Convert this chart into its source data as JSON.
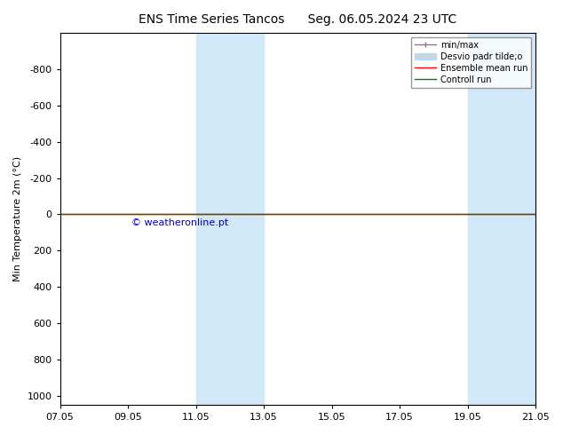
{
  "title": "ENS Time Series Tancos      Seg. 06.05.2024 23 UTC",
  "ylabel": "Min Temperature 2m (°C)",
  "ylim": [
    -1000,
    1050
  ],
  "yticks": [
    -800,
    -600,
    -400,
    -200,
    0,
    200,
    400,
    600,
    800,
    1000
  ],
  "xlim_start": "2024-05-07",
  "xlim_end": "2024-05-22",
  "xtick_labels": [
    "07.05",
    "09.05",
    "11.05",
    "13.05",
    "15.05",
    "17.05",
    "19.05",
    "21.05"
  ],
  "xtick_positions": [
    0,
    2,
    4,
    6,
    8,
    10,
    12,
    14
  ],
  "shade_bands": [
    {
      "x_start": 4,
      "x_end": 6,
      "color": "#d0e8f8"
    },
    {
      "x_start": 12,
      "x_end": 14,
      "color": "#d0e8f8"
    }
  ],
  "control_run_y": 0,
  "ensemble_mean_y": 0,
  "control_run_color": "#008000",
  "ensemble_mean_color": "#ff0000",
  "minmax_color": "#808080",
  "stddev_color": "#c0d8e8",
  "legend_labels": [
    "min/max",
    "Desvio padr tilde;o",
    "Ensemble mean run",
    "Controll run"
  ],
  "watermark": "© weatheronline.pt",
  "watermark_color": "#0000cc",
  "bg_color": "#ffffff",
  "title_fontsize": 10,
  "axis_fontsize": 8,
  "tick_fontsize": 8
}
